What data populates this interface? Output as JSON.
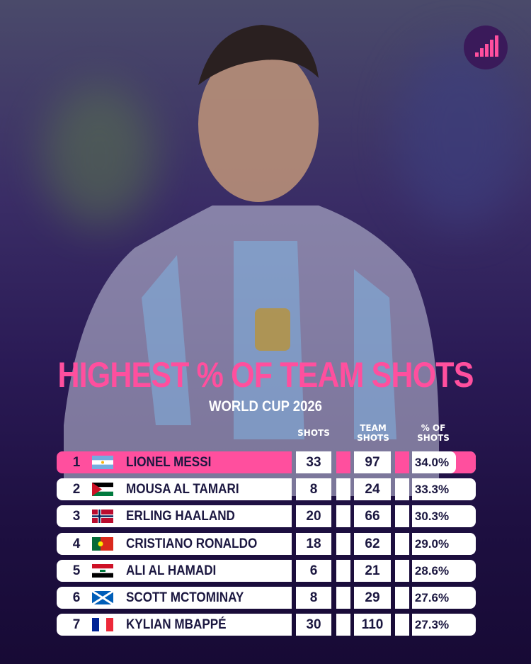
{
  "header": {
    "title": "HIGHEST % OF TEAM SHOTS",
    "subtitle": "WORLD CUP 2026"
  },
  "table": {
    "columns": [
      "SHOTS",
      "TEAM SHOTS",
      "% OF SHOTS"
    ],
    "rows": [
      {
        "rank": "1",
        "name": "LIONEL MESSI",
        "shots": "33",
        "team_shots": "97",
        "pct": "34.0%"
      },
      {
        "rank": "2",
        "name": "MOUSA AL TAMARI",
        "shots": "8",
        "team_shots": "24",
        "pct": "33.3%"
      },
      {
        "rank": "3",
        "name": "ERLING HAALAND",
        "shots": "20",
        "team_shots": "66",
        "pct": "30.3%"
      },
      {
        "rank": "4",
        "name": "CRISTIANO RONALDO",
        "shots": "18",
        "team_shots": "62",
        "pct": "29.0%"
      },
      {
        "rank": "5",
        "name": "ALI AL HAMADI",
        "shots": "6",
        "team_shots": "21",
        "pct": "28.6%"
      },
      {
        "rank": "6",
        "name": "SCOTT MCTOMINAY",
        "shots": "8",
        "team_shots": "29",
        "pct": "27.6%"
      },
      {
        "rank": "7",
        "name": "KYLIAN MBAPPÉ",
        "shots": "30",
        "team_shots": "110",
        "pct": "27.3%"
      }
    ]
  }
}
